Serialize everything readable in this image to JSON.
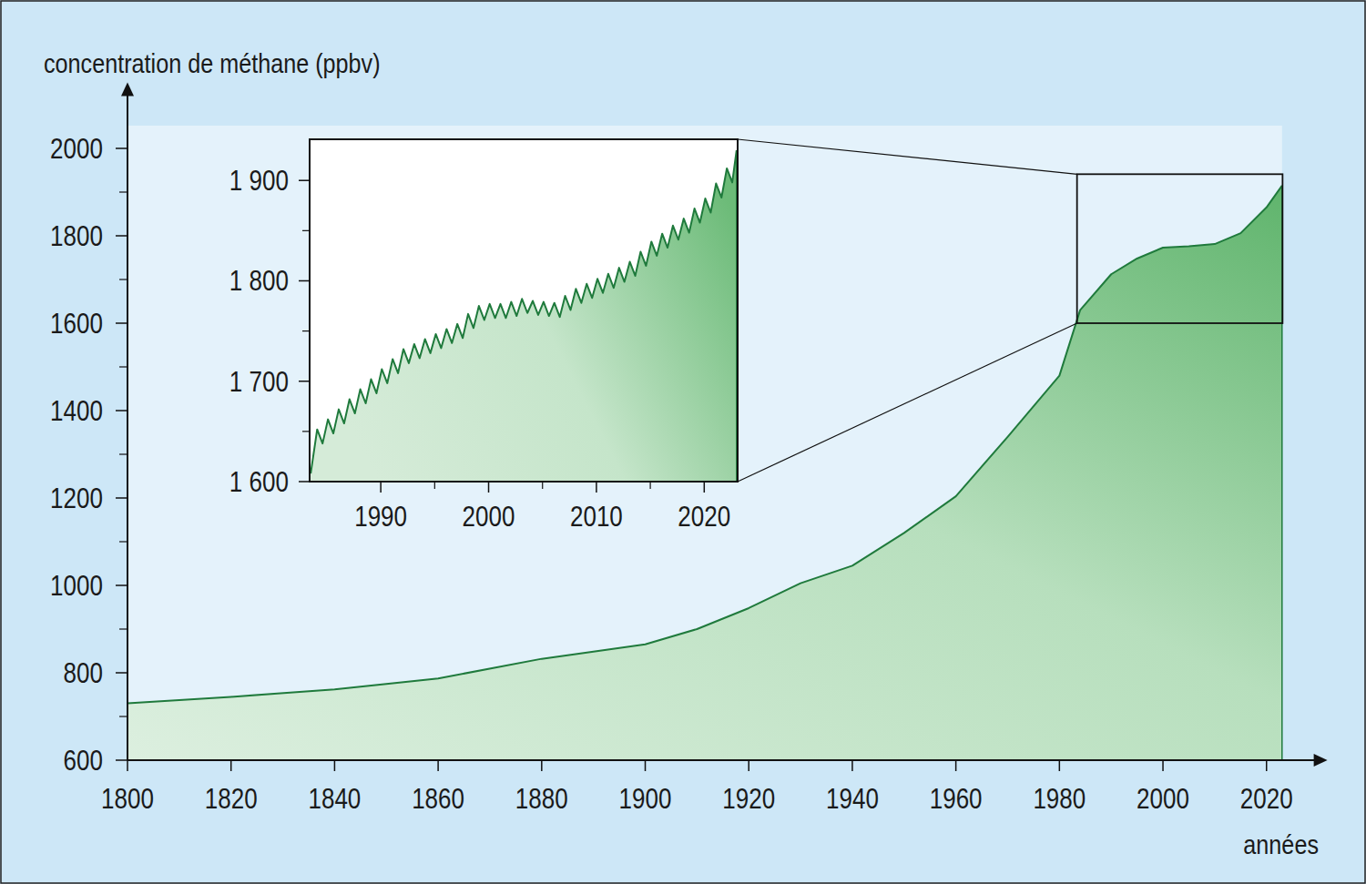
{
  "chart_data": [
    {
      "type": "area",
      "y_label": "concentration de méthane (ppbv)",
      "x_label": "années",
      "color": "#1f7a3c",
      "x": [
        1800,
        1820,
        1840,
        1860,
        1880,
        1900,
        1910,
        1920,
        1930,
        1940,
        1950,
        1960,
        1970,
        1980,
        1984,
        1990,
        1995,
        2000,
        2005,
        2010,
        2015,
        2020,
        2023
      ],
      "values": [
        730,
        745,
        762,
        787,
        832,
        865,
        900,
        948,
        1005,
        1045,
        1120,
        1204,
        1340,
        1480,
        1630,
        1712,
        1748,
        1773,
        1776,
        1781,
        1806,
        1865,
        1915
      ],
      "xlim": [
        1800,
        2030
      ],
      "ylim": [
        600,
        2130
      ],
      "xticks": [
        1800,
        1820,
        1840,
        1860,
        1880,
        1900,
        1920,
        1940,
        1960,
        1980,
        2000,
        2020
      ],
      "yticks": [
        600,
        800,
        1000,
        1200,
        1400,
        1600,
        1800,
        2000
      ],
      "yticks_labels_note_free": true,
      "grid": false
    },
    {
      "type": "area",
      "color": "#1f7a3c",
      "x": [
        1983.5,
        1984.1,
        1984.6,
        1985.1,
        1985.6,
        1986.1,
        1986.6,
        1987.1,
        1987.6,
        1988.1,
        1988.6,
        1989.1,
        1989.6,
        1990.1,
        1990.6,
        1991.1,
        1991.6,
        1992.1,
        1992.6,
        1993.1,
        1993.6,
        1994.1,
        1994.6,
        1995.1,
        1995.6,
        1996.1,
        1996.6,
        1997.1,
        1997.6,
        1998.1,
        1998.6,
        1999.1,
        1999.6,
        2000.1,
        2000.6,
        2001.1,
        2001.6,
        2002.1,
        2002.6,
        2003.1,
        2003.6,
        2004.1,
        2004.6,
        2005.1,
        2005.6,
        2006.1,
        2006.6,
        2007.1,
        2007.6,
        2008.1,
        2008.6,
        2009.1,
        2009.6,
        2010.1,
        2010.6,
        2011.1,
        2011.6,
        2012.1,
        2012.6,
        2013.1,
        2013.6,
        2014.1,
        2014.6,
        2015.1,
        2015.6,
        2016.1,
        2016.6,
        2017.1,
        2017.6,
        2018.1,
        2018.6,
        2019.1,
        2019.6,
        2020.1,
        2020.6,
        2021.1,
        2021.6,
        2022.1,
        2022.6,
        2023.0
      ],
      "values": [
        1608,
        1652,
        1638,
        1662,
        1648,
        1672,
        1658,
        1682,
        1668,
        1692,
        1678,
        1702,
        1688,
        1712,
        1698,
        1722,
        1708,
        1732,
        1718,
        1737,
        1723,
        1742,
        1728,
        1747,
        1733,
        1752,
        1738,
        1757,
        1743,
        1767,
        1753,
        1775,
        1761,
        1777,
        1763,
        1777,
        1763,
        1779,
        1765,
        1782,
        1768,
        1780,
        1766,
        1779,
        1765,
        1778,
        1764,
        1785,
        1771,
        1792,
        1778,
        1797,
        1783,
        1802,
        1788,
        1807,
        1793,
        1813,
        1799,
        1819,
        1805,
        1829,
        1815,
        1839,
        1825,
        1847,
        1833,
        1855,
        1841,
        1862,
        1848,
        1872,
        1858,
        1882,
        1868,
        1897,
        1883,
        1912,
        1898,
        1930
      ],
      "xlim": [
        1983.4,
        2023.1
      ],
      "ylim": [
        1600,
        1941
      ],
      "xticks": [
        1990,
        2000,
        2010,
        2020
      ],
      "yticks": [
        {
          "value": 1600,
          "label": "1 600"
        },
        {
          "value": 1700,
          "label": "1 700"
        },
        {
          "value": 1800,
          "label": "1 800"
        },
        {
          "value": 1900,
          "label": "1 900"
        }
      ],
      "grid": false
    }
  ]
}
